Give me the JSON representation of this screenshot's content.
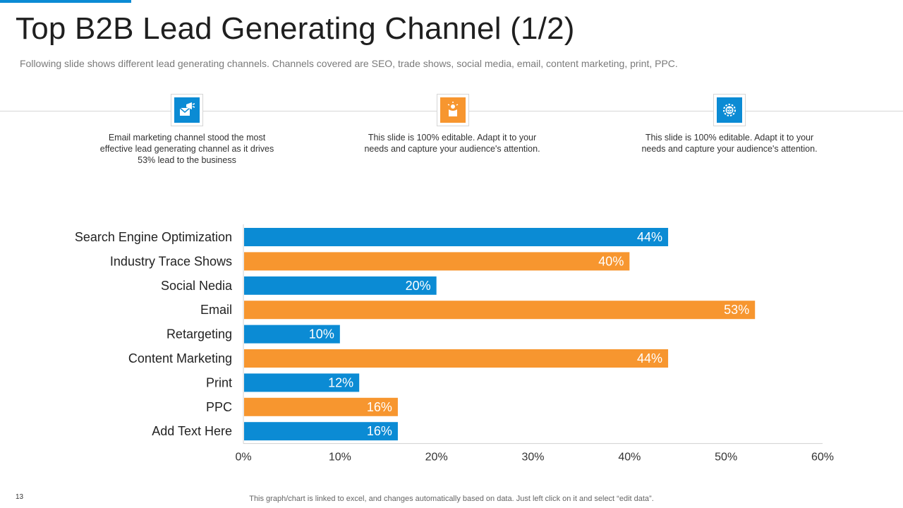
{
  "slide": {
    "title": "Top B2B Lead Generating Channel (1/2)",
    "subtitle": "Following slide shows different lead generating channels. Channels covered are SEO, trade shows, social media, email, content marketing, print, PPC.",
    "page_number": "13",
    "footnote": "This graph/chart is linked to excel,  and changes automatically based on data. Just left click on it and select “edit data”."
  },
  "colors": {
    "blue": "#0b8bd4",
    "orange": "#f7962f",
    "accent": "#0b8bd4"
  },
  "cards": [
    {
      "icon": "megaphone-icon",
      "color": "#0b8bd4",
      "text": "Email marketing channel stood the most effective  lead generating channel as it drives 53% lead to the business"
    },
    {
      "icon": "idea-hand-icon",
      "color": "#f7962f",
      "text": "This slide is 100% editable. Adapt it to your needs and capture your audience's attention."
    },
    {
      "icon": "gear-email-icon",
      "color": "#0b8bd4",
      "text": "This slide is 100% editable. Adapt it to your needs and capture your audience's attention."
    }
  ],
  "chart_data": {
    "type": "bar",
    "orientation": "horizontal",
    "categories": [
      "Search Engine Optimization",
      "Industry Trace Shows",
      "Social Nedia",
      "Email",
      "Retargeting",
      "Content Marketing",
      "Print",
      "PPC",
      "Add Text Here"
    ],
    "values": [
      44,
      40,
      20,
      53,
      10,
      44,
      12,
      16,
      16
    ],
    "value_labels": [
      "44%",
      "40%",
      "20%",
      "53%",
      "10%",
      "44%",
      "12%",
      "16%",
      "16%"
    ],
    "bar_colors": [
      "#0b8bd4",
      "#f7962f",
      "#0b8bd4",
      "#f7962f",
      "#0b8bd4",
      "#f7962f",
      "#0b8bd4",
      "#f7962f",
      "#0b8bd4"
    ],
    "xlim": [
      0,
      60
    ],
    "xticks": [
      0,
      10,
      20,
      30,
      40,
      50,
      60
    ],
    "xtick_labels": [
      "0%",
      "10%",
      "20%",
      "30%",
      "40%",
      "50%",
      "60%"
    ],
    "grid": false,
    "legend": "none",
    "title": "",
    "xlabel": "",
    "ylabel": ""
  }
}
